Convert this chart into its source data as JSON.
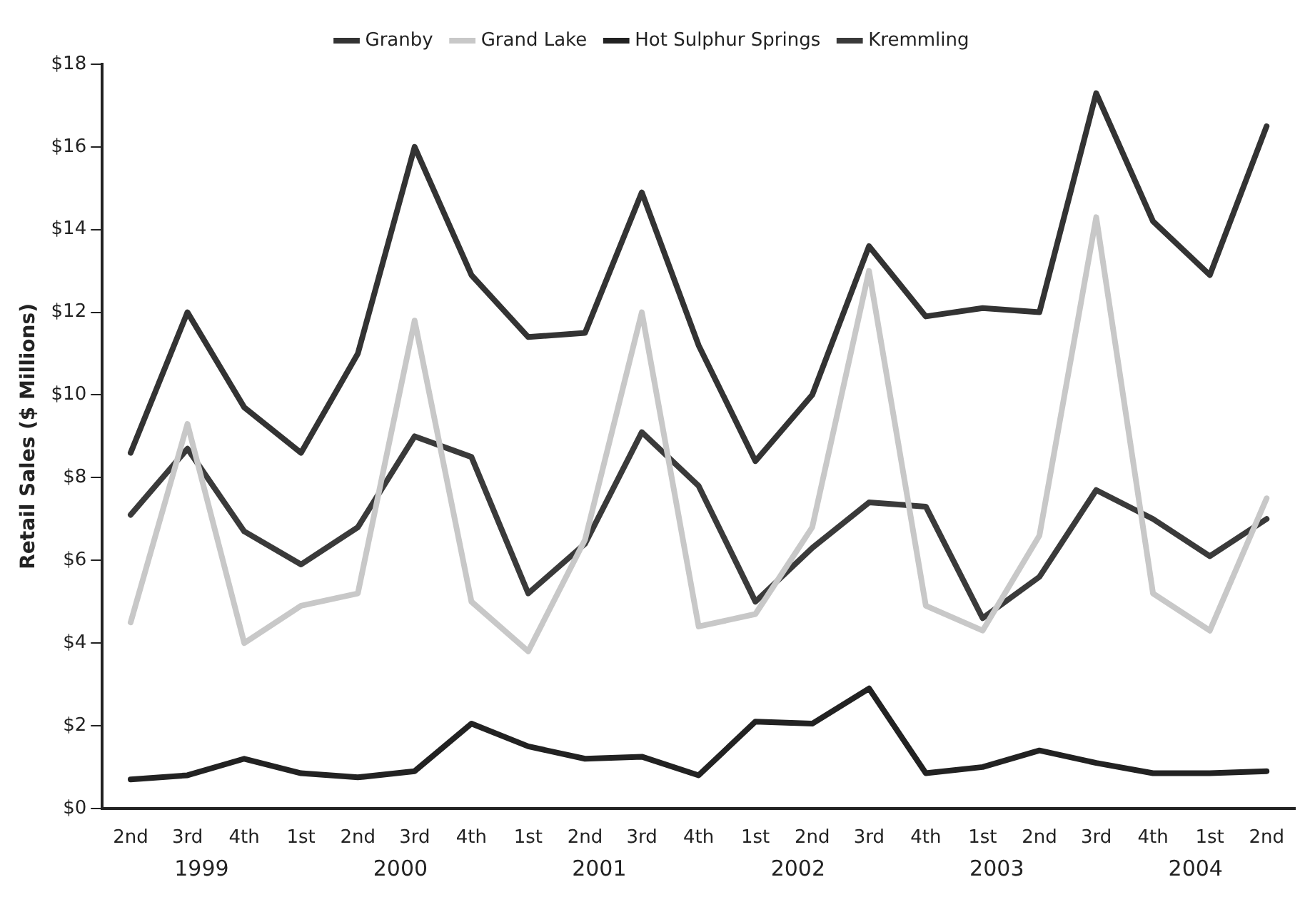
{
  "chart_data": {
    "type": "line",
    "ylabel": "Retail Sales ($ Millions)",
    "categories": [
      "2nd",
      "3rd",
      "4th",
      "1st",
      "2nd",
      "3rd",
      "4th",
      "1st",
      "2nd",
      "3rd",
      "4th",
      "1st",
      "2nd",
      "3rd",
      "4th",
      "1st",
      "2nd",
      "3rd",
      "4th",
      "1st",
      "2nd"
    ],
    "series": [
      {
        "name": "Granby",
        "color": "#333333",
        "values": [
          8.6,
          12.0,
          9.7,
          8.6,
          11.0,
          16.0,
          12.9,
          11.4,
          11.5,
          14.9,
          11.2,
          8.4,
          10.0,
          13.6,
          11.9,
          12.1,
          12.0,
          17.3,
          14.2,
          12.9,
          16.5
        ]
      },
      {
        "name": "Grand Lake",
        "color": "#c8c8c8",
        "values": [
          4.5,
          9.3,
          4.0,
          4.9,
          5.2,
          11.8,
          5.0,
          3.8,
          6.5,
          12.0,
          4.4,
          4.7,
          6.8,
          13.0,
          4.9,
          4.3,
          6.6,
          14.3,
          5.2,
          4.3,
          7.5
        ]
      },
      {
        "name": "Hot Sulphur Springs",
        "color": "#222222",
        "values": [
          0.7,
          0.8,
          1.2,
          0.85,
          0.75,
          0.9,
          2.05,
          1.5,
          1.2,
          1.25,
          0.8,
          2.1,
          2.05,
          2.9,
          0.85,
          1.0,
          1.4,
          1.1,
          0.85,
          0.85,
          0.9
        ]
      },
      {
        "name": "Kremmling",
        "color": "#3a3a3a",
        "values": [
          7.1,
          8.7,
          6.7,
          5.9,
          6.8,
          9.0,
          8.5,
          5.2,
          6.4,
          9.1,
          7.8,
          5.0,
          6.3,
          7.4,
          7.3,
          4.6,
          5.6,
          7.7,
          7.0,
          6.1,
          7.0
        ]
      }
    ],
    "ylim": [
      0,
      18
    ],
    "yticks": [
      {
        "value": 0,
        "label": "$0"
      },
      {
        "value": 2,
        "label": "$2"
      },
      {
        "value": 4,
        "label": "$4"
      },
      {
        "value": 6,
        "label": "$6"
      },
      {
        "value": 8,
        "label": "$8"
      },
      {
        "value": 10,
        "label": "$10"
      },
      {
        "value": 12,
        "label": "$12"
      },
      {
        "value": 14,
        "label": "$14"
      },
      {
        "value": 16,
        "label": "$16"
      },
      {
        "value": 18,
        "label": "$18"
      }
    ],
    "annotations": [
      "1999",
      "2000",
      "2001",
      "2002",
      "2003",
      "2004"
    ],
    "legend": "top",
    "grid": false,
    "marker": "none",
    "line_style": "solid"
  }
}
